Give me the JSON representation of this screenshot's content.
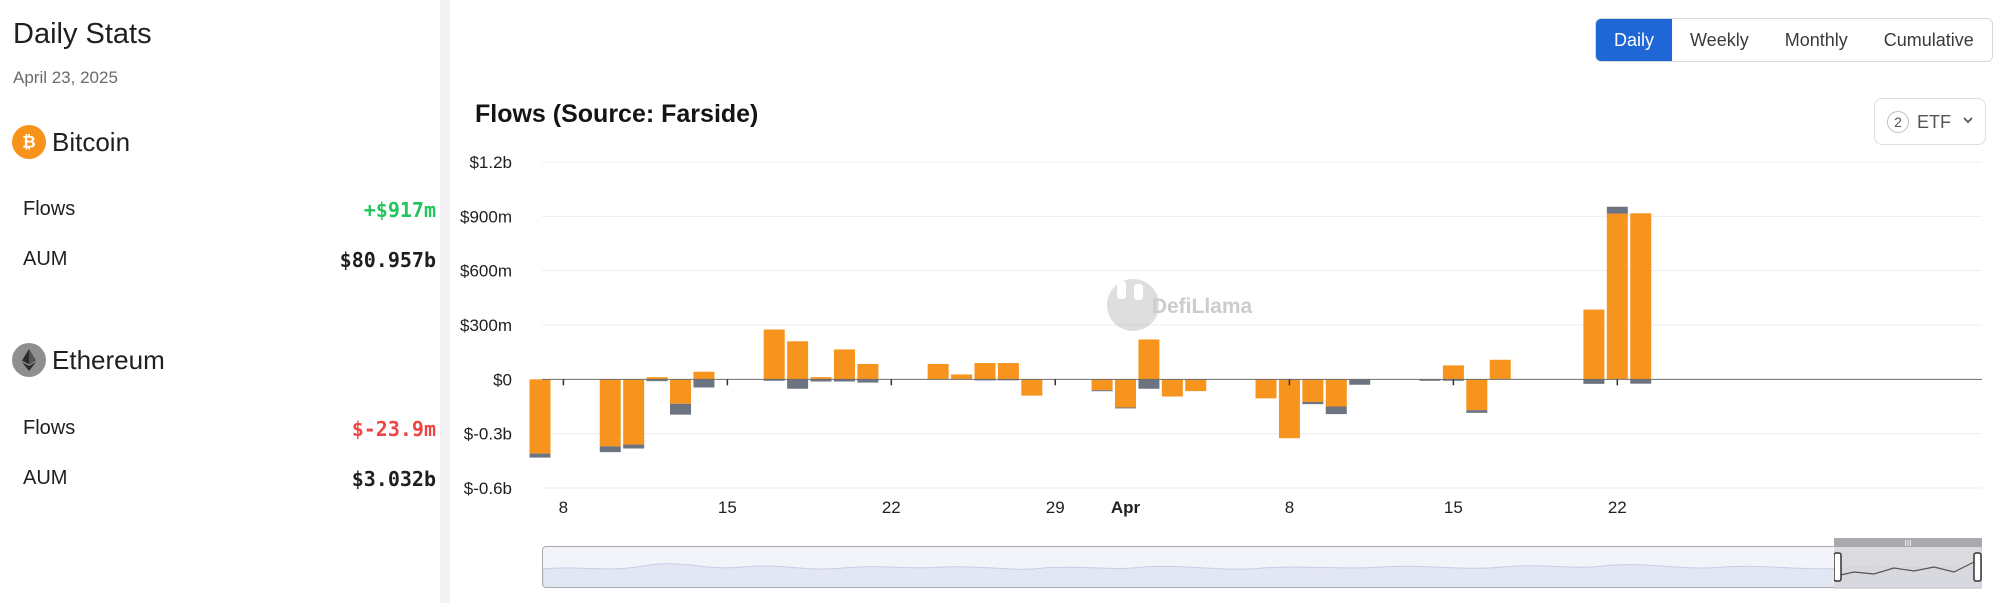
{
  "daily_stats": {
    "title": "Daily Stats",
    "date": "April 23, 2025",
    "assets": [
      {
        "name": "Bitcoin",
        "icon": "bitcoin-icon",
        "color": "#f7931a",
        "flows_label": "Flows",
        "flows_value": "+$917m",
        "flows_sign": "pos",
        "aum_label": "AUM",
        "aum_value": "$80.957b"
      },
      {
        "name": "Ethereum",
        "icon": "ethereum-icon",
        "color": "#9e9e9e",
        "flows_label": "Flows",
        "flows_value": "$-23.9m",
        "flows_sign": "neg",
        "aum_label": "AUM",
        "aum_value": "$3.032b"
      }
    ]
  },
  "toggle": {
    "options": [
      "Daily",
      "Weekly",
      "Monthly",
      "Cumulative"
    ],
    "active": "Daily"
  },
  "etf_select": {
    "count": "2",
    "label": "ETF"
  },
  "watermark": {
    "text": "DefiLlama"
  },
  "colors": {
    "bitcoin": "#f7941d",
    "ethereum": "#6c7381",
    "accent": "#1f66d6"
  },
  "chart_data": {
    "type": "bar",
    "stacked": true,
    "title": "Flows (Source: Farside)",
    "xlabel": "",
    "ylabel": "",
    "ylim": [
      -600,
      1200
    ],
    "y_unit": "$m",
    "y_ticks": [
      1200,
      900,
      600,
      300,
      0,
      -300,
      -600
    ],
    "y_tick_labels": [
      "$1.2b",
      "$900m",
      "$600m",
      "$300m",
      "$0",
      "$-0.3b",
      "$-0.6b"
    ],
    "x_tick_labels": [
      {
        "date": "2025-03-08",
        "label": "8",
        "bold": false
      },
      {
        "date": "2025-03-15",
        "label": "15",
        "bold": false
      },
      {
        "date": "2025-03-22",
        "label": "22",
        "bold": false
      },
      {
        "date": "2025-03-29",
        "label": "29",
        "bold": false
      },
      {
        "date": "2025-04-01",
        "label": "Apr",
        "bold": true
      },
      {
        "date": "2025-04-08",
        "label": "8",
        "bold": false
      },
      {
        "date": "2025-04-15",
        "label": "15",
        "bold": false
      },
      {
        "date": "2025-04-22",
        "label": "22",
        "bold": false
      }
    ],
    "x_range": [
      "2025-03-07",
      "2025-04-23"
    ],
    "grid": true,
    "legend": "none",
    "series": [
      {
        "name": "Bitcoin",
        "color": "#f7941d",
        "points": [
          {
            "date": "2025-03-07",
            "value": -410
          },
          {
            "date": "2025-03-10",
            "value": -370
          },
          {
            "date": "2025-03-11",
            "value": -360
          },
          {
            "date": "2025-03-12",
            "value": 12
          },
          {
            "date": "2025-03-13",
            "value": -135
          },
          {
            "date": "2025-03-14",
            "value": 42
          },
          {
            "date": "2025-03-17",
            "value": 275
          },
          {
            "date": "2025-03-18",
            "value": 210
          },
          {
            "date": "2025-03-19",
            "value": 12
          },
          {
            "date": "2025-03-20",
            "value": 165
          },
          {
            "date": "2025-03-21",
            "value": 85
          },
          {
            "date": "2025-03-24",
            "value": 85
          },
          {
            "date": "2025-03-25",
            "value": 27
          },
          {
            "date": "2025-03-26",
            "value": 90
          },
          {
            "date": "2025-03-27",
            "value": 90
          },
          {
            "date": "2025-03-28",
            "value": -90
          },
          {
            "date": "2025-03-31",
            "value": -60
          },
          {
            "date": "2025-04-01",
            "value": -155
          },
          {
            "date": "2025-04-02",
            "value": 220
          },
          {
            "date": "2025-04-03",
            "value": -95
          },
          {
            "date": "2025-04-04",
            "value": -65
          },
          {
            "date": "2025-04-07",
            "value": -105
          },
          {
            "date": "2025-04-08",
            "value": -325
          },
          {
            "date": "2025-04-09",
            "value": -125
          },
          {
            "date": "2025-04-10",
            "value": -150
          },
          {
            "date": "2025-04-11",
            "value": 0
          },
          {
            "date": "2025-04-14",
            "value": 0
          },
          {
            "date": "2025-04-15",
            "value": 77
          },
          {
            "date": "2025-04-16",
            "value": -170
          },
          {
            "date": "2025-04-17",
            "value": 108
          },
          {
            "date": "2025-04-21",
            "value": 385
          },
          {
            "date": "2025-04-22",
            "value": 915
          },
          {
            "date": "2025-04-23",
            "value": 917
          }
        ]
      },
      {
        "name": "Ethereum",
        "color": "#6c7381",
        "points": [
          {
            "date": "2025-03-07",
            "value": -22
          },
          {
            "date": "2025-03-10",
            "value": -32
          },
          {
            "date": "2025-03-11",
            "value": -22
          },
          {
            "date": "2025-03-12",
            "value": -10
          },
          {
            "date": "2025-03-13",
            "value": -60
          },
          {
            "date": "2025-03-14",
            "value": -45
          },
          {
            "date": "2025-03-17",
            "value": -8
          },
          {
            "date": "2025-03-18",
            "value": -52
          },
          {
            "date": "2025-03-19",
            "value": -12
          },
          {
            "date": "2025-03-20",
            "value": -12
          },
          {
            "date": "2025-03-21",
            "value": -18
          },
          {
            "date": "2025-03-24",
            "value": 0
          },
          {
            "date": "2025-03-25",
            "value": 0
          },
          {
            "date": "2025-03-26",
            "value": -6
          },
          {
            "date": "2025-03-27",
            "value": -5
          },
          {
            "date": "2025-03-28",
            "value": 0
          },
          {
            "date": "2025-03-31",
            "value": -5
          },
          {
            "date": "2025-04-01",
            "value": -5
          },
          {
            "date": "2025-04-02",
            "value": -52
          },
          {
            "date": "2025-04-03",
            "value": 0
          },
          {
            "date": "2025-04-04",
            "value": 0
          },
          {
            "date": "2025-04-07",
            "value": 0
          },
          {
            "date": "2025-04-08",
            "value": 0
          },
          {
            "date": "2025-04-09",
            "value": -12
          },
          {
            "date": "2025-04-10",
            "value": -42
          },
          {
            "date": "2025-04-11",
            "value": -30
          },
          {
            "date": "2025-04-14",
            "value": -8
          },
          {
            "date": "2025-04-15",
            "value": -8
          },
          {
            "date": "2025-04-16",
            "value": -15
          },
          {
            "date": "2025-04-17",
            "value": 0
          },
          {
            "date": "2025-04-21",
            "value": -25
          },
          {
            "date": "2025-04-22",
            "value": 38
          },
          {
            "date": "2025-04-23",
            "value": -24
          }
        ]
      }
    ]
  }
}
